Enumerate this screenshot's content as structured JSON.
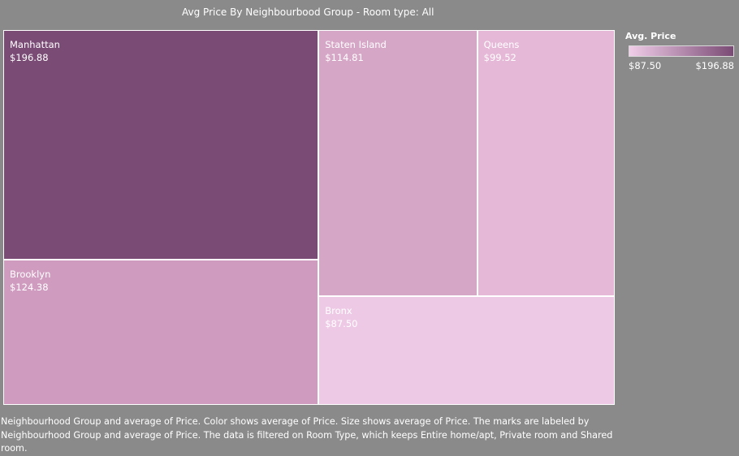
{
  "title": "Avg Price By Neighbourbood Group - Room type: All",
  "chart_data": {
    "type": "treemap",
    "size_measure": "average of Price",
    "color_measure": "average of Price",
    "items": [
      {
        "name": "Manhattan",
        "value": 196.88,
        "label": "$196.88",
        "color": "#7a4b75"
      },
      {
        "name": "Brooklyn",
        "value": 124.38,
        "label": "$124.38",
        "color": "#cf9bbe"
      },
      {
        "name": "Staten Island",
        "value": 114.81,
        "label": "$114.81",
        "color": "#d6a6c6"
      },
      {
        "name": "Queens",
        "value": 99.52,
        "label": "$99.52",
        "color": "#e6b8d7"
      },
      {
        "name": "Bronx",
        "value": 87.5,
        "label": "$87.50",
        "color": "#eec9e5"
      }
    ],
    "legend": {
      "title": "Avg. Price",
      "min_label": "$87.50",
      "max_label": "$196.88",
      "color_min": "#f0cde8",
      "color_max": "#7a4b75",
      "placement": "top-right"
    }
  },
  "caption": "Neighbourhood Group and average of Price.  Color shows average of Price.  Size shows average of Price.  The marks are labeled by Neighbourhood Group and average of Price. The data is filtered on Room Type, which keeps Entire home/apt, Private room and Shared room."
}
